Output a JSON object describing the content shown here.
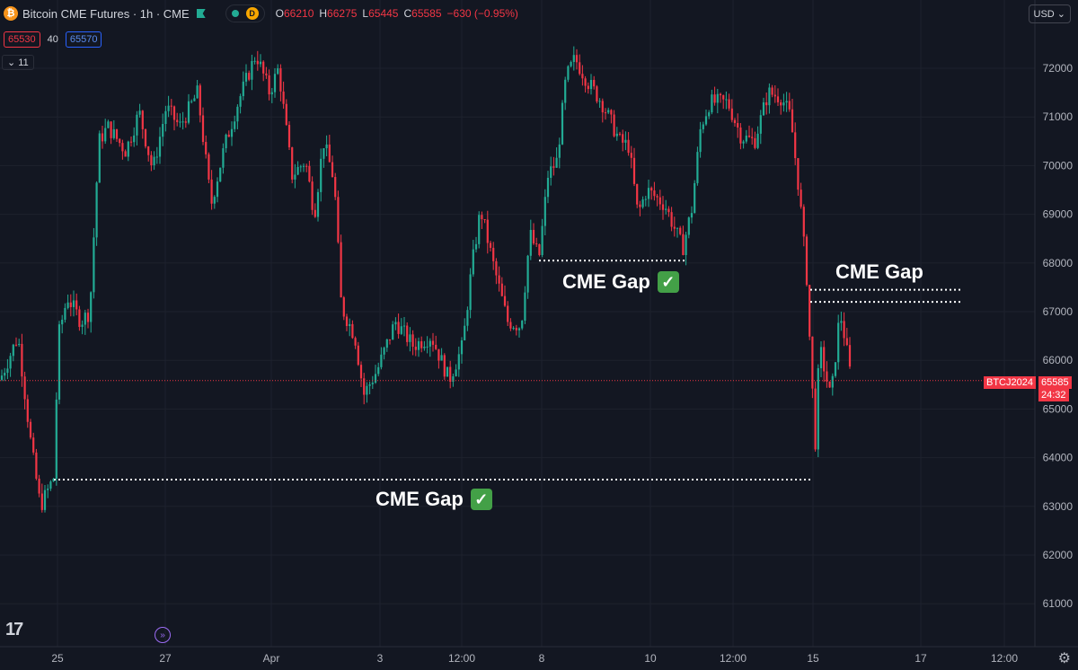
{
  "header": {
    "coin_symbol": "₿",
    "title": "Bitcoin CME Futures · 1h · CME",
    "dot_letter": "D",
    "open_label": "O",
    "open": "66210",
    "high_label": "H",
    "high": "66275",
    "low_label": "L",
    "low": "65445",
    "close_label": "C",
    "close": "65585",
    "change": "−630 (−0.95%)"
  },
  "order": {
    "bid": "65530",
    "spread": "40",
    "ask": "65570"
  },
  "indicators_toggle": "⌄ 11",
  "currency": "USD ⌄",
  "logo": "17",
  "price_tag": {
    "symbol": "BTCJ2024",
    "price": "65585",
    "countdown": "24:32"
  },
  "annotations": [
    {
      "text": "CME Gap",
      "checked": true
    },
    {
      "text": "CME Gap",
      "checked": false
    },
    {
      "text": "CME Gap",
      "checked": true
    }
  ],
  "check_mark": "✓",
  "colors": {
    "up": "#22ab94",
    "down": "#f23645",
    "background": "#131722",
    "grid": "#1e222d",
    "axis_text": "#b2b5be"
  },
  "chart_data": {
    "type": "candlestick",
    "symbol": "BTCJ2024",
    "interval": "1h",
    "ylim": [
      60500,
      72500
    ],
    "y_ticks": [
      61000,
      62000,
      63000,
      64000,
      65000,
      66000,
      67000,
      68000,
      69000,
      70000,
      71000,
      72000
    ],
    "x_ticks": [
      "25",
      "27",
      "Apr",
      "3",
      "12:00",
      "8",
      "10",
      "12:00",
      "15",
      "17",
      "12:00"
    ],
    "last_price": 65585,
    "gaps": [
      {
        "level": 63550
      },
      {
        "level": 68050
      },
      {
        "level_top": 67450,
        "level_bottom": 67200
      }
    ],
    "path": [
      [
        0,
        65600
      ],
      [
        20,
        66500
      ],
      [
        35,
        64200
      ],
      [
        45,
        63000
      ],
      [
        60,
        63600
      ],
      [
        65,
        66500
      ],
      [
        75,
        67300
      ],
      [
        90,
        66800
      ],
      [
        100,
        67000
      ],
      [
        110,
        70500
      ],
      [
        120,
        70800
      ],
      [
        140,
        70300
      ],
      [
        155,
        71100
      ],
      [
        170,
        69900
      ],
      [
        185,
        71200
      ],
      [
        200,
        70800
      ],
      [
        220,
        71500
      ],
      [
        235,
        69200
      ],
      [
        250,
        70400
      ],
      [
        265,
        71300
      ],
      [
        285,
        72300
      ],
      [
        300,
        71500
      ],
      [
        310,
        72000
      ],
      [
        325,
        69800
      ],
      [
        340,
        70100
      ],
      [
        350,
        69000
      ],
      [
        360,
        70500
      ],
      [
        372,
        69700
      ],
      [
        380,
        67100
      ],
      [
        395,
        66500
      ],
      [
        405,
        65300
      ],
      [
        420,
        65800
      ],
      [
        440,
        66800
      ],
      [
        460,
        66300
      ],
      [
        480,
        66500
      ],
      [
        500,
        65600
      ],
      [
        515,
        66300
      ],
      [
        525,
        67900
      ],
      [
        535,
        69100
      ],
      [
        550,
        67900
      ],
      [
        565,
        66800
      ],
      [
        580,
        66700
      ],
      [
        590,
        68600
      ],
      [
        600,
        68100
      ],
      [
        610,
        69800
      ],
      [
        620,
        70100
      ],
      [
        630,
        71800
      ],
      [
        640,
        72200
      ],
      [
        655,
        71700
      ],
      [
        670,
        71300
      ],
      [
        690,
        70500
      ],
      [
        700,
        70400
      ],
      [
        710,
        69000
      ],
      [
        720,
        69500
      ],
      [
        740,
        69200
      ],
      [
        760,
        68300
      ],
      [
        770,
        69100
      ],
      [
        780,
        70800
      ],
      [
        790,
        71300
      ],
      [
        810,
        71300
      ],
      [
        825,
        70600
      ],
      [
        840,
        70500
      ],
      [
        855,
        71500
      ],
      [
        870,
        71400
      ],
      [
        880,
        71000
      ],
      [
        890,
        69400
      ],
      [
        898,
        67700
      ],
      [
        903,
        65800
      ],
      [
        908,
        64200
      ],
      [
        912,
        66300
      ],
      [
        925,
        65200
      ],
      [
        935,
        67000
      ],
      [
        940,
        66500
      ],
      [
        948,
        65550
      ]
    ]
  }
}
